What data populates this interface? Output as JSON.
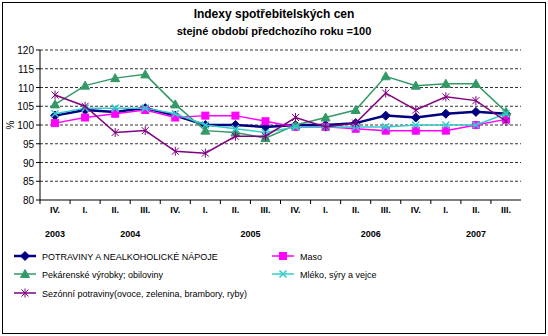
{
  "chart_data": {
    "type": "line",
    "title": "Indexy spotřebitelských cen",
    "subtitle": "stejné období předchozího roku =100",
    "y_label": "%",
    "categories": [
      "IV.",
      "I.",
      "II.",
      "III.",
      "IV.",
      "I.",
      "II.",
      "III.",
      "IV.",
      "I.",
      "II.",
      "III.",
      "IV.",
      "I.",
      "II.",
      "III."
    ],
    "x_groups": [
      {
        "label": "2003",
        "span": 1
      },
      {
        "label": "2004",
        "span": 4
      },
      {
        "label": "2005",
        "span": 4
      },
      {
        "label": "2006",
        "span": 4
      },
      {
        "label": "2007",
        "span": 3
      }
    ],
    "ylim": [
      80,
      120
    ],
    "yticks": [
      80,
      85,
      90,
      95,
      100,
      105,
      110,
      115,
      120
    ],
    "grid": true,
    "legend": "bottom",
    "series": [
      {
        "name": "POTRAVINY A NEALKOHOLICKÉ NÁPOJE",
        "color": "#000080",
        "marker": "diamond",
        "line_style": "solid",
        "values": [
          102.5,
          104,
          103.5,
          104.5,
          102.5,
          100,
          100,
          99.5,
          100,
          100,
          100.5,
          102.5,
          102,
          103,
          103.5,
          103
        ]
      },
      {
        "name": "Maso",
        "color": "#ff00ff",
        "marker": "square",
        "line_style": "solid",
        "values": [
          100.5,
          102,
          103,
          104,
          102,
          102.5,
          102.5,
          101,
          99.5,
          99.5,
          99,
          98.5,
          98.5,
          98.5,
          100,
          101.5
        ]
      },
      {
        "name": "Pekárenské výrobky; obiloviny",
        "color": "#339966",
        "marker": "triangle",
        "line_style": "solid",
        "values": [
          105.5,
          110.5,
          112.5,
          113.5,
          105.5,
          98.5,
          98,
          96.5,
          100,
          102,
          104,
          113,
          110.5,
          111,
          111,
          103.5
        ]
      },
      {
        "name": "Mléko, sýry a vejce",
        "color": "#33cccc",
        "marker": "x",
        "line_style": "solid",
        "values": [
          103,
          104.5,
          104.5,
          104.5,
          103,
          100,
          99,
          98,
          99.5,
          99.5,
          99.5,
          99.5,
          100,
          100,
          100,
          103
        ]
      },
      {
        "name": "Sezónní potraviny(ovoce, zelenina, brambory, ryby)",
        "color": "#800080",
        "marker": "star",
        "line_style": "solid",
        "values": [
          108,
          105,
          98,
          98.5,
          93,
          92.5,
          97,
          97,
          102,
          99.5,
          100.5,
          108.5,
          104,
          107.5,
          106.5,
          101
        ]
      }
    ]
  }
}
